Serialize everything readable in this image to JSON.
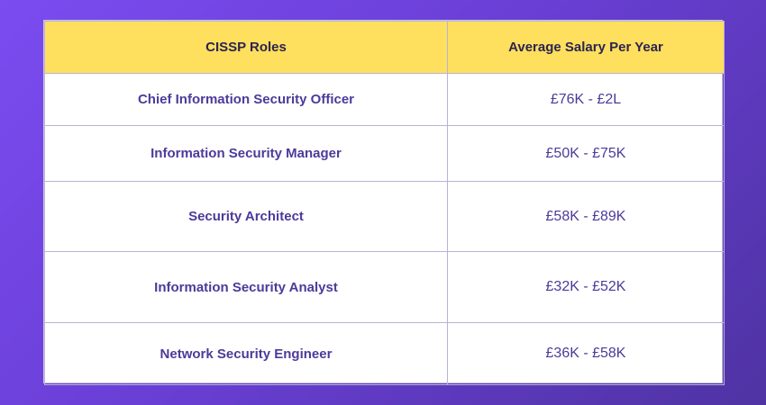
{
  "table": {
    "headers": {
      "role": "CISSP Roles",
      "salary": "Average Salary Per Year"
    },
    "rows": [
      {
        "role": "Chief Information Security Officer",
        "salary": "£76K - £2L"
      },
      {
        "role": "Information Security Manager",
        "salary": "£50K - £75K"
      },
      {
        "role": "Security Architect",
        "salary": "£58K - £89K"
      },
      {
        "role": "Information Security Analyst",
        "salary": "£32K - £52K"
      },
      {
        "role": "Network Security Engineer",
        "salary": "£36K - £58K"
      }
    ]
  },
  "colors": {
    "header_bg": "#ffdf5e",
    "text_accent": "#4d3a9a",
    "background_gradient_start": "#7b4cf0",
    "background_gradient_end": "#4f33a3"
  }
}
